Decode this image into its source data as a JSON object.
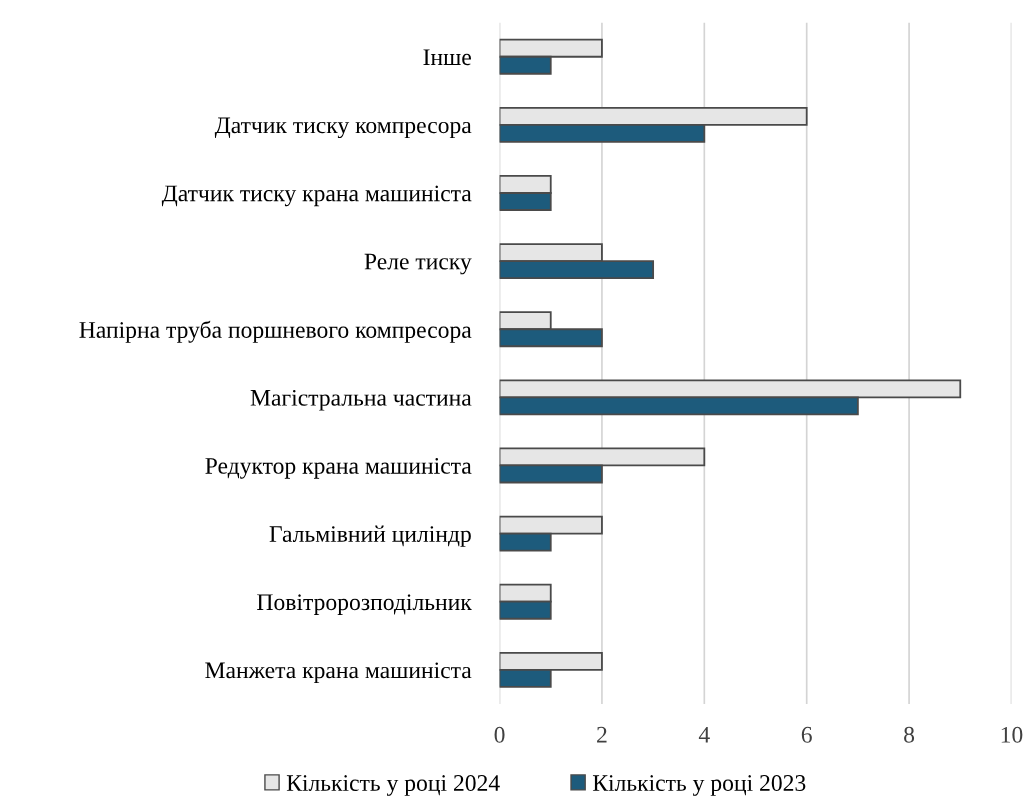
{
  "chart_data": {
    "type": "bar",
    "orientation": "horizontal",
    "categories": [
      "Інше",
      "Датчик тиску компресора",
      "Датчик тиску крана машиніста",
      "Реле тиску",
      "Напірна труба поршневого компресора",
      "Магістральна частина",
      "Редуктор крана машиніста",
      "Гальмівний циліндр",
      "Повітророзподільник",
      "Манжета крана машиніста"
    ],
    "series": [
      {
        "name": "Кількість у році 2024",
        "color": "#e6e6e6",
        "values": [
          2,
          6,
          1,
          2,
          1,
          9,
          4,
          2,
          1,
          2
        ]
      },
      {
        "name": "Кількість у році 2023",
        "color": "#1d5b7c",
        "values": [
          1,
          4,
          1,
          3,
          2,
          7,
          2,
          1,
          1,
          1
        ]
      }
    ],
    "xlim": [
      0,
      10
    ],
    "xticks": [
      0,
      2,
      4,
      6,
      8,
      10
    ],
    "grid": "x",
    "legend": "bottom"
  }
}
